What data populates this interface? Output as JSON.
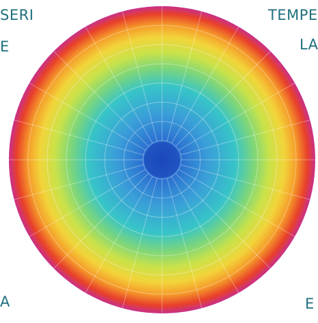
{
  "text_fragments": [
    "SERI",
    "E",
    "TEMPE",
    "LA",
    "A",
    "E"
  ]
}
